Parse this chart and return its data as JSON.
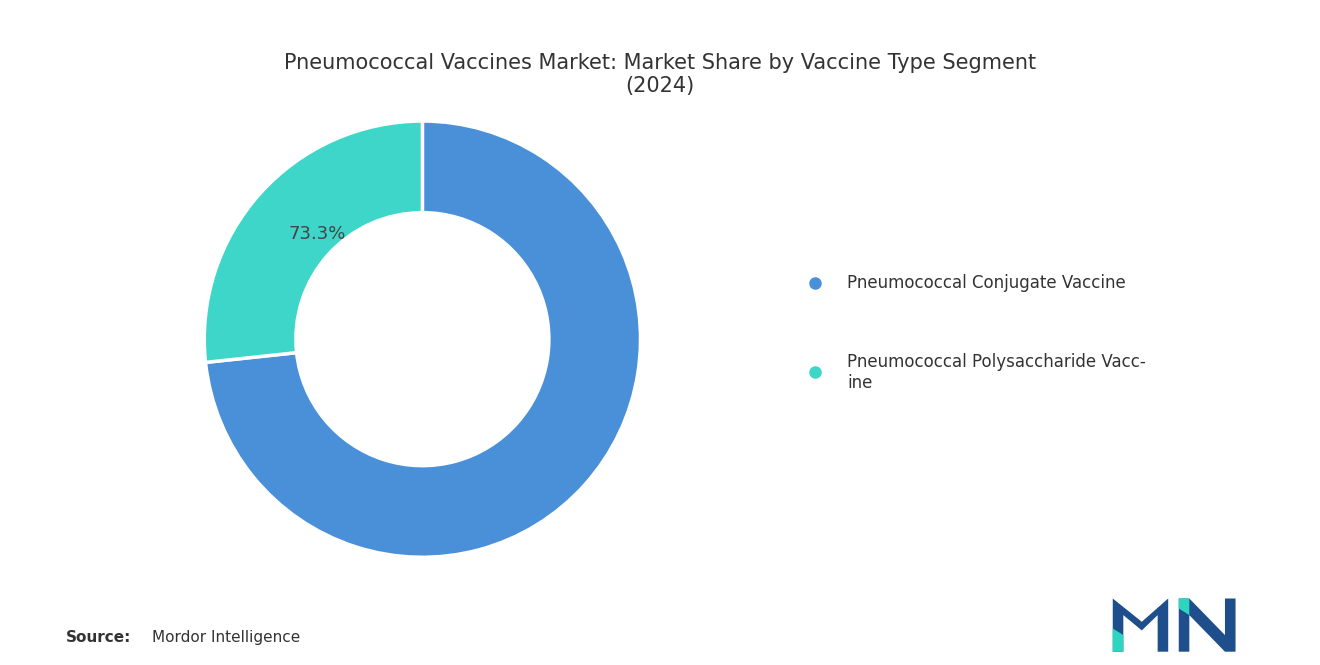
{
  "title": "Pneumococcal Vaccines Market: Market Share by Vaccine Type Segment\n(2024)",
  "slices": [
    73.3,
    26.7
  ],
  "label_text": "73.3%",
  "colors": [
    "#4A90D9",
    "#3DD6C8"
  ],
  "legend_labels": [
    "Pneumococcal Conjugate Vaccine",
    "Pneumococcal Polysaccharide Vacc-\nine"
  ],
  "source_bold": "Source:",
  "source_text": "Mordor Intelligence",
  "bg_color": "#FFFFFF",
  "title_fontsize": 15,
  "legend_fontsize": 12,
  "source_fontsize": 11,
  "wedge_label_fontsize": 13
}
